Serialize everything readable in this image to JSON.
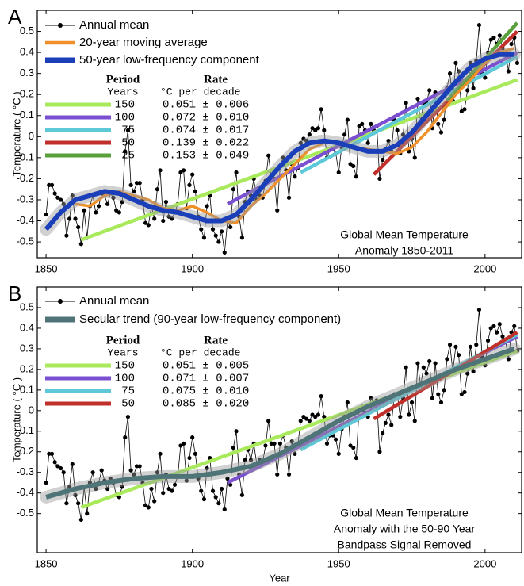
{
  "chart_data": [
    {
      "type": "line",
      "panel": "A",
      "ylabel": "Temperature ( °C )",
      "annotation": [
        "Global Mean Temperature",
        "Anomaly 1850-2011"
      ],
      "xlim": [
        1847,
        2012.5
      ],
      "ylim": [
        -0.575,
        0.6
      ],
      "xticks": [
        1850,
        1900,
        1950,
        2000
      ],
      "yticks": [
        -0.5,
        -0.4,
        -0.3,
        -0.2,
        -0.1,
        0,
        0.1,
        0.2,
        0.3,
        0.4,
        0.5
      ],
      "series": [
        {
          "name": "Annual mean",
          "color": "#000000",
          "x": [
            1850,
            1851,
            1852,
            1853,
            1854,
            1855,
            1856,
            1857,
            1858,
            1859,
            1860,
            1861,
            1862,
            1863,
            1864,
            1865,
            1866,
            1867,
            1868,
            1869,
            1870,
            1871,
            1872,
            1873,
            1874,
            1875,
            1876,
            1877,
            1878,
            1879,
            1880,
            1881,
            1882,
            1883,
            1884,
            1885,
            1886,
            1887,
            1888,
            1889,
            1890,
            1891,
            1892,
            1893,
            1894,
            1895,
            1896,
            1897,
            1898,
            1899,
            1900,
            1901,
            1902,
            1903,
            1904,
            1905,
            1906,
            1907,
            1908,
            1909,
            1910,
            1911,
            1912,
            1913,
            1914,
            1915,
            1916,
            1917,
            1918,
            1919,
            1920,
            1921,
            1922,
            1923,
            1924,
            1925,
            1926,
            1927,
            1928,
            1929,
            1930,
            1931,
            1932,
            1933,
            1934,
            1935,
            1936,
            1937,
            1938,
            1939,
            1940,
            1941,
            1942,
            1943,
            1944,
            1945,
            1946,
            1947,
            1948,
            1949,
            1950,
            1951,
            1952,
            1953,
            1954,
            1955,
            1956,
            1957,
            1958,
            1959,
            1960,
            1961,
            1962,
            1963,
            1964,
            1965,
            1966,
            1967,
            1968,
            1969,
            1970,
            1971,
            1972,
            1973,
            1974,
            1975,
            1976,
            1977,
            1978,
            1979,
            1980,
            1981,
            1982,
            1983,
            1984,
            1985,
            1986,
            1987,
            1988,
            1989,
            1990,
            1991,
            1992,
            1993,
            1994,
            1995,
            1996,
            1997,
            1998,
            1999,
            2000,
            2001,
            2002,
            2003,
            2004,
            2005,
            2006,
            2007,
            2008,
            2009,
            2010,
            2011
          ],
          "values": [
            -0.37,
            -0.23,
            -0.23,
            -0.27,
            -0.29,
            -0.3,
            -0.32,
            -0.47,
            -0.39,
            -0.28,
            -0.39,
            -0.43,
            -0.51,
            -0.35,
            -0.48,
            -0.33,
            -0.28,
            -0.36,
            -0.33,
            -0.27,
            -0.28,
            -0.32,
            -0.27,
            -0.29,
            -0.35,
            -0.36,
            -0.31,
            -0.07,
            0.03,
            -0.23,
            -0.26,
            -0.22,
            -0.22,
            -0.3,
            -0.41,
            -0.42,
            -0.33,
            -0.39,
            -0.25,
            -0.16,
            -0.4,
            -0.31,
            -0.38,
            -0.39,
            -0.36,
            -0.32,
            -0.17,
            -0.16,
            -0.34,
            -0.23,
            -0.18,
            -0.26,
            -0.38,
            -0.44,
            -0.48,
            -0.33,
            -0.28,
            -0.44,
            -0.47,
            -0.5,
            -0.45,
            -0.55,
            -0.4,
            -0.43,
            -0.25,
            -0.17,
            -0.38,
            -0.48,
            -0.31,
            -0.26,
            -0.28,
            -0.2,
            -0.3,
            -0.28,
            -0.29,
            -0.21,
            -0.09,
            -0.2,
            -0.2,
            -0.35,
            -0.14,
            -0.1,
            -0.16,
            -0.29,
            -0.13,
            -0.19,
            -0.15,
            -0.03,
            -0.01,
            -0.02,
            0.01,
            0.04,
            0.03,
            0.04,
            0.13,
            0.03,
            -0.1,
            -0.06,
            -0.06,
            -0.08,
            -0.17,
            -0.05,
            0.01,
            0.08,
            -0.13,
            -0.14,
            -0.19,
            0.05,
            0.06,
            0.03,
            -0.03,
            0.06,
            0.03,
            0.05,
            -0.2,
            -0.11,
            -0.06,
            -0.02,
            -0.07,
            0.08,
            0.03,
            -0.08,
            0.01,
            0.16,
            -0.07,
            -0.01,
            -0.1,
            0.18,
            0.07,
            0.16,
            0.16,
            0.22,
            0.04,
            0.21,
            0.06,
            0.02,
            0.08,
            0.23,
            0.3,
            0.17,
            0.35,
            0.31,
            0.12,
            0.13,
            0.22,
            0.35,
            0.23,
            0.36,
            0.53,
            0.3,
            0.28,
            0.4,
            0.46,
            0.47,
            0.44,
            0.48,
            0.42,
            0.4,
            0.31,
            0.44,
            0.47,
            0.35
          ]
        },
        {
          "name": "20-year moving average",
          "color": "#f0902a",
          "x": [
            1860,
            1865,
            1870,
            1875,
            1880,
            1885,
            1890,
            1895,
            1900,
            1905,
            1910,
            1915,
            1920,
            1925,
            1930,
            1935,
            1940,
            1945,
            1950,
            1955,
            1960,
            1965,
            1970,
            1975,
            1980,
            1985,
            1990,
            1995,
            2000,
            2005,
            2010
          ],
          "values": [
            -0.32,
            -0.33,
            -0.28,
            -0.26,
            -0.28,
            -0.3,
            -0.34,
            -0.35,
            -0.33,
            -0.36,
            -0.4,
            -0.41,
            -0.33,
            -0.27,
            -0.2,
            -0.13,
            -0.06,
            -0.03,
            -0.03,
            -0.05,
            -0.06,
            -0.07,
            -0.08,
            -0.05,
            0.02,
            0.11,
            0.2,
            0.27,
            0.35,
            0.4,
            0.42
          ]
        },
        {
          "name": "50-year low-frequency component",
          "color": "#1a3fb8",
          "x": [
            1850,
            1855,
            1860,
            1865,
            1870,
            1875,
            1880,
            1885,
            1890,
            1895,
            1900,
            1905,
            1910,
            1915,
            1920,
            1925,
            1930,
            1935,
            1940,
            1945,
            1950,
            1955,
            1960,
            1965,
            1970,
            1975,
            1980,
            1985,
            1990,
            1995,
            2000,
            2005,
            2010
          ],
          "values": [
            -0.44,
            -0.36,
            -0.3,
            -0.28,
            -0.26,
            -0.27,
            -0.3,
            -0.33,
            -0.35,
            -0.36,
            -0.38,
            -0.4,
            -0.4,
            -0.37,
            -0.3,
            -0.22,
            -0.14,
            -0.07,
            -0.03,
            -0.02,
            -0.03,
            -0.05,
            -0.07,
            -0.07,
            -0.04,
            0.02,
            0.1,
            0.18,
            0.26,
            0.33,
            0.37,
            0.39,
            0.39
          ]
        }
      ],
      "trends": {
        "header": [
          "Period",
          "Rate"
        ],
        "units": [
          "Years",
          "°C per decade"
        ],
        "rows": [
          {
            "period": 150,
            "rate": "0.051 ± 0.006",
            "color": "#a8ea5c",
            "x": [
              1862,
              2011
            ],
            "values": [
              -0.49,
              0.27
            ]
          },
          {
            "period": 100,
            "rate": "0.072 ± 0.010",
            "color": "#7a4fd0",
            "x": [
              1912,
              2011
            ],
            "values": [
              -0.32,
              0.4
            ]
          },
          {
            "period": 75,
            "rate": "0.074 ± 0.017",
            "color": "#5cc8d8",
            "x": [
              1937,
              2011
            ],
            "values": [
              -0.17,
              0.38
            ]
          },
          {
            "period": 50,
            "rate": "0.139 ± 0.022",
            "color": "#c0302a",
            "x": [
              1962,
              2011
            ],
            "values": [
              -0.18,
              0.5
            ]
          },
          {
            "period": 25,
            "rate": "0.153 ± 0.049",
            "color": "#5aa03a",
            "x": [
              1987,
              2011
            ],
            "values": [
              0.17,
              0.54
            ]
          }
        ]
      }
    },
    {
      "type": "line",
      "panel": "B",
      "ylabel": "Temperature ( °C )",
      "xlabel": "Year",
      "annotation": [
        "Global Mean Temperature",
        "Anomaly with the 50-90 Year",
        "Bandpass Signal Removed"
      ],
      "xlim": [
        1847,
        2012.5
      ],
      "ylim": [
        -0.69,
        0.6
      ],
      "xticks": [
        1850,
        1900,
        1950,
        2000
      ],
      "yticks": [
        -0.5,
        -0.4,
        -0.3,
        -0.2,
        -0.1,
        0,
        0.1,
        0.2,
        0.3,
        0.4,
        0.5
      ],
      "series": [
        {
          "name": "Annual mean",
          "color": "#000000",
          "x": [
            1850,
            1851,
            1852,
            1853,
            1854,
            1855,
            1856,
            1857,
            1858,
            1859,
            1860,
            1861,
            1862,
            1863,
            1864,
            1865,
            1866,
            1867,
            1868,
            1869,
            1870,
            1871,
            1872,
            1873,
            1874,
            1875,
            1876,
            1877,
            1878,
            1879,
            1880,
            1881,
            1882,
            1883,
            1884,
            1885,
            1886,
            1887,
            1888,
            1889,
            1890,
            1891,
            1892,
            1893,
            1894,
            1895,
            1896,
            1897,
            1898,
            1899,
            1900,
            1901,
            1902,
            1903,
            1904,
            1905,
            1906,
            1907,
            1908,
            1909,
            1910,
            1911,
            1912,
            1913,
            1914,
            1915,
            1916,
            1917,
            1918,
            1919,
            1920,
            1921,
            1922,
            1923,
            1924,
            1925,
            1926,
            1927,
            1928,
            1929,
            1930,
            1931,
            1932,
            1933,
            1934,
            1935,
            1936,
            1937,
            1938,
            1939,
            1940,
            1941,
            1942,
            1943,
            1944,
            1945,
            1946,
            1947,
            1948,
            1949,
            1950,
            1951,
            1952,
            1953,
            1954,
            1955,
            1956,
            1957,
            1958,
            1959,
            1960,
            1961,
            1962,
            1963,
            1964,
            1965,
            1966,
            1967,
            1968,
            1969,
            1970,
            1971,
            1972,
            1973,
            1974,
            1975,
            1976,
            1977,
            1978,
            1979,
            1980,
            1981,
            1982,
            1983,
            1984,
            1985,
            1986,
            1987,
            1988,
            1989,
            1990,
            1991,
            1992,
            1993,
            1994,
            1995,
            1996,
            1997,
            1998,
            1999,
            2000,
            2001,
            2002,
            2003,
            2004,
            2005,
            2006,
            2007,
            2008,
            2009,
            2010,
            2011
          ],
          "values": [
            -0.35,
            -0.21,
            -0.21,
            -0.25,
            -0.27,
            -0.28,
            -0.3,
            -0.45,
            -0.37,
            -0.26,
            -0.41,
            -0.45,
            -0.53,
            -0.37,
            -0.5,
            -0.35,
            -0.3,
            -0.38,
            -0.35,
            -0.29,
            -0.34,
            -0.38,
            -0.33,
            -0.35,
            -0.41,
            -0.42,
            -0.37,
            -0.13,
            -0.03,
            -0.29,
            -0.31,
            -0.27,
            -0.27,
            -0.35,
            -0.46,
            -0.47,
            -0.38,
            -0.44,
            -0.3,
            -0.21,
            -0.4,
            -0.31,
            -0.38,
            -0.39,
            -0.36,
            -0.32,
            -0.17,
            -0.16,
            -0.34,
            -0.23,
            -0.13,
            -0.21,
            -0.33,
            -0.39,
            -0.43,
            -0.28,
            -0.23,
            -0.39,
            -0.42,
            -0.45,
            -0.38,
            -0.48,
            -0.33,
            -0.36,
            -0.18,
            -0.1,
            -0.31,
            -0.41,
            -0.24,
            -0.19,
            -0.24,
            -0.16,
            -0.26,
            -0.24,
            -0.25,
            -0.17,
            -0.05,
            -0.16,
            -0.16,
            -0.31,
            -0.16,
            -0.12,
            -0.18,
            -0.31,
            -0.15,
            -0.21,
            -0.17,
            -0.05,
            -0.03,
            -0.04,
            -0.05,
            -0.02,
            -0.03,
            -0.02,
            0.07,
            -0.03,
            -0.16,
            -0.12,
            -0.12,
            -0.14,
            -0.21,
            -0.09,
            -0.03,
            0.04,
            -0.17,
            -0.18,
            -0.23,
            0.01,
            0.02,
            -0.01,
            -0.03,
            0.06,
            0.03,
            0.05,
            -0.2,
            -0.11,
            -0.06,
            -0.02,
            -0.07,
            0.08,
            0.08,
            -0.03,
            0.06,
            0.21,
            -0.02,
            0.04,
            -0.05,
            0.23,
            0.12,
            0.21,
            0.18,
            0.24,
            0.06,
            0.23,
            0.08,
            0.04,
            0.1,
            0.25,
            0.32,
            0.19,
            0.31,
            0.27,
            0.08,
            0.09,
            0.18,
            0.31,
            0.19,
            0.32,
            0.49,
            0.26,
            0.22,
            0.34,
            0.4,
            0.41,
            0.38,
            0.42,
            0.36,
            0.34,
            0.25,
            0.38,
            0.41,
            0.29
          ]
        },
        {
          "name": "Secular trend (90-year low-frequency component)",
          "color": "#4f7478",
          "x": [
            1850,
            1860,
            1870,
            1880,
            1890,
            1900,
            1910,
            1920,
            1930,
            1940,
            1950,
            1960,
            1970,
            1980,
            1990,
            2000,
            2010
          ],
          "values": [
            -0.42,
            -0.38,
            -0.35,
            -0.33,
            -0.32,
            -0.32,
            -0.3,
            -0.27,
            -0.21,
            -0.13,
            -0.05,
            0.02,
            0.08,
            0.14,
            0.2,
            0.25,
            0.3
          ]
        }
      ],
      "trends": {
        "header": [
          "Period",
          "Rate"
        ],
        "units": [
          "Years",
          "°C per decade"
        ],
        "rows": [
          {
            "period": 150,
            "rate": "0.051 ± 0.005",
            "color": "#a8ea5c",
            "x": [
              1862,
              2011
            ],
            "values": [
              -0.47,
              0.29
            ]
          },
          {
            "period": 100,
            "rate": "0.071 ± 0.007",
            "color": "#7a4fd0",
            "x": [
              1912,
              2011
            ],
            "values": [
              -0.35,
              0.36
            ]
          },
          {
            "period": 75,
            "rate": "0.075 ± 0.010",
            "color": "#5cc8d8",
            "x": [
              1937,
              2011
            ],
            "values": [
              -0.19,
              0.37
            ]
          },
          {
            "period": 50,
            "rate": "0.085 ± 0.020",
            "color": "#c0302a",
            "x": [
              1962,
              2011
            ],
            "values": [
              -0.04,
              0.38
            ]
          }
        ]
      }
    }
  ]
}
